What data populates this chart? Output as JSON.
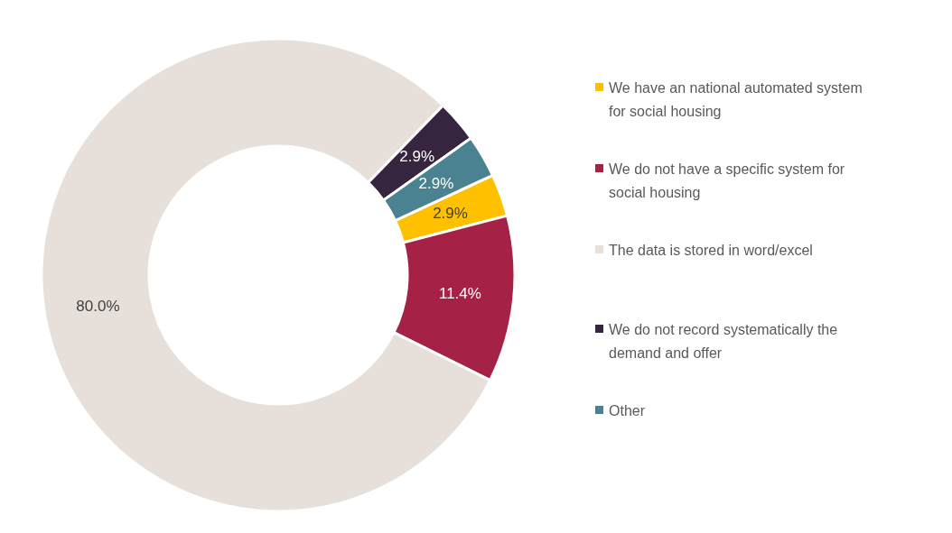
{
  "chart_data": {
    "type": "donut",
    "categories": [
      "We have an national automated system for social housing",
      "We do not have a specific system for social housing",
      "The data is stored in word/excel",
      "We do not record systematically the demand and offer",
      "Other"
    ],
    "values": [
      2.9,
      11.4,
      80.0,
      2.9,
      2.9
    ],
    "colors": [
      "#ffc000",
      "#a52145",
      "#e6dfda",
      "#35253f",
      "#4b8291"
    ],
    "value_labels": [
      "2.9%",
      "11.4%",
      "80.0%",
      "2.9%",
      "2.9%"
    ],
    "legend": "right"
  }
}
